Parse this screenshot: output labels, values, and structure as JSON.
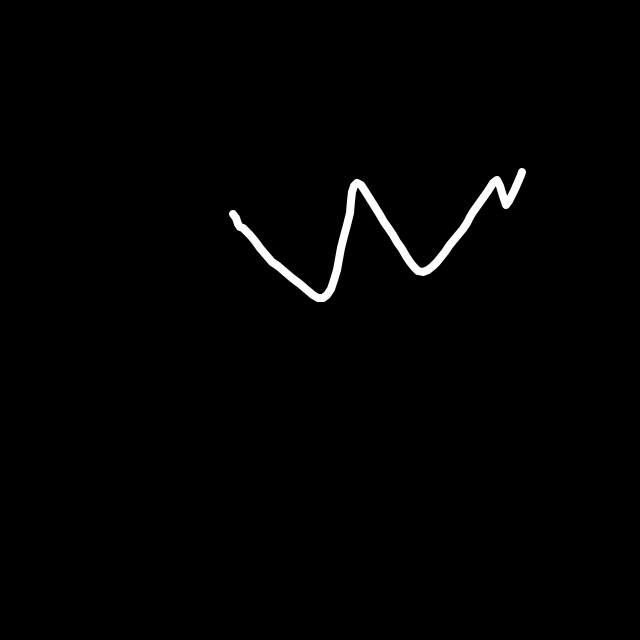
{
  "colors": {
    "background": "#000000",
    "stroke": "#ffffff"
  },
  "drawing": {
    "subject": "freehand-stroke"
  }
}
